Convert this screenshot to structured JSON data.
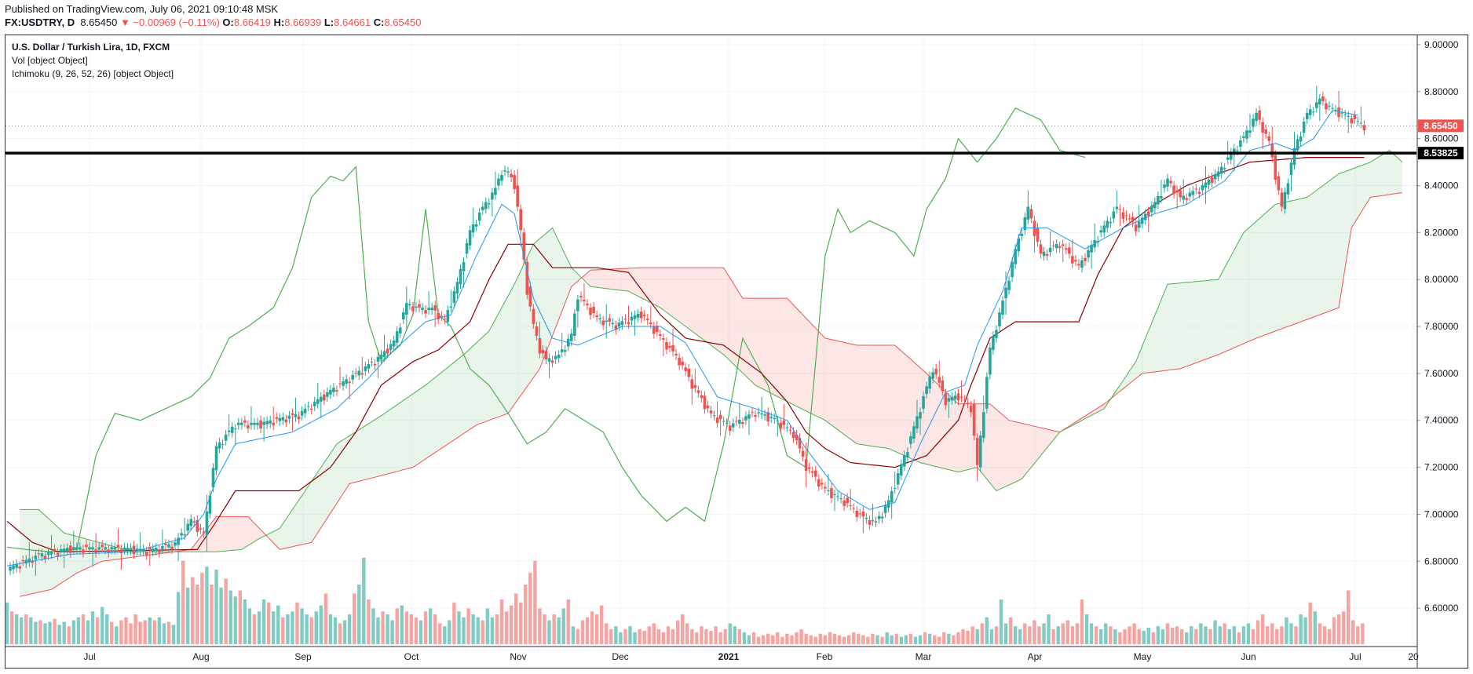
{
  "header": {
    "published": "Published on TradingView.com, July 06, 2021 09:10:48 MSK",
    "symbol": "FX:USDTRY, D",
    "last": "8.65450",
    "change_arrow": "▼",
    "change": "−0.00969 (−0.11%)",
    "o_label": "O:",
    "o_value": "8.66419",
    "h_label": "H:",
    "h_value": "8.66939",
    "l_label": "L:",
    "l_value": "8.64661",
    "c_label": "C:",
    "c_value": "8.65450"
  },
  "legend": {
    "title": "U.S. Dollar / Turkish Lira, 1D, FXCM",
    "volume": "Vol [object Object]",
    "ichimoku": "Ichimoku (9, 26, 52, 26) [object Object]"
  },
  "chart_data": {
    "type": "candlestick",
    "title": "U.S. Dollar / Turkish Lira, 1D, FXCM",
    "ylim": [
      6.44,
      9.04
    ],
    "y_ticks": [
      "9.00000",
      "8.80000",
      "8.60000",
      "8.40000",
      "8.20000",
      "8.00000",
      "7.80000",
      "7.60000",
      "7.40000",
      "7.20000",
      "7.00000",
      "6.80000",
      "6.60000"
    ],
    "x_ticks": [
      "Jul",
      "Aug",
      "Sep",
      "Oct",
      "Nov",
      "Dec",
      "2021",
      "Feb",
      "Mar",
      "Apr",
      "May",
      "Jun",
      "Jul",
      "20"
    ],
    "price_badge": "8.65450",
    "level_badge": "8.53825",
    "level": 8.53825,
    "colors": {
      "up": "#26a69a",
      "down": "#ef5350",
      "up_vol": "#80cbc4",
      "down_vol": "#f6a4a2",
      "tenkan": "#2196f3",
      "kijun": "#8b0000",
      "chikou": "#4caf50",
      "span_a": "#4caf50",
      "span_b": "#ef5350",
      "level": "#000000"
    },
    "price_path": [
      [
        0,
        6.76
      ],
      [
        10,
        6.82
      ],
      [
        20,
        6.85
      ],
      [
        35,
        6.85
      ],
      [
        45,
        6.84
      ],
      [
        53,
        6.87
      ],
      [
        58,
        6.97
      ],
      [
        62,
        6.91
      ],
      [
        66,
        7.28
      ],
      [
        72,
        7.38
      ],
      [
        80,
        7.38
      ],
      [
        92,
        7.42
      ],
      [
        102,
        7.52
      ],
      [
        112,
        7.61
      ],
      [
        118,
        7.67
      ],
      [
        122,
        7.73
      ],
      [
        126,
        7.89
      ],
      [
        130,
        7.87
      ],
      [
        134,
        7.87
      ],
      [
        138,
        7.82
      ],
      [
        142,
        7.98
      ],
      [
        146,
        8.2
      ],
      [
        150,
        8.3
      ],
      [
        154,
        8.38
      ],
      [
        156,
        8.46
      ],
      [
        158,
        8.45
      ],
      [
        160,
        8.4
      ],
      [
        162,
        8.2
      ],
      [
        164,
        7.95
      ],
      [
        166,
        7.8
      ],
      [
        168,
        7.7
      ],
      [
        170,
        7.65
      ],
      [
        174,
        7.67
      ],
      [
        178,
        7.76
      ],
      [
        180,
        7.93
      ],
      [
        186,
        7.83
      ],
      [
        192,
        7.8
      ],
      [
        200,
        7.85
      ],
      [
        206,
        7.75
      ],
      [
        212,
        7.65
      ],
      [
        216,
        7.55
      ],
      [
        222,
        7.42
      ],
      [
        228,
        7.37
      ],
      [
        236,
        7.43
      ],
      [
        242,
        7.4
      ],
      [
        248,
        7.34
      ],
      [
        252,
        7.2
      ],
      [
        258,
        7.1
      ],
      [
        264,
        7.05
      ],
      [
        270,
        6.98
      ],
      [
        274,
        6.96
      ],
      [
        278,
        7.05
      ],
      [
        284,
        7.28
      ],
      [
        288,
        7.45
      ],
      [
        292,
        7.62
      ],
      [
        296,
        7.48
      ],
      [
        300,
        7.5
      ],
      [
        304,
        7.45
      ],
      [
        306,
        7.2
      ],
      [
        310,
        7.7
      ],
      [
        314,
        7.9
      ],
      [
        318,
        8.12
      ],
      [
        322,
        8.3
      ],
      [
        326,
        8.1
      ],
      [
        332,
        8.15
      ],
      [
        338,
        8.05
      ],
      [
        344,
        8.18
      ],
      [
        350,
        8.3
      ],
      [
        356,
        8.22
      ],
      [
        362,
        8.32
      ],
      [
        366,
        8.42
      ],
      [
        370,
        8.34
      ],
      [
        376,
        8.38
      ],
      [
        382,
        8.45
      ],
      [
        386,
        8.53
      ],
      [
        390,
        8.6
      ],
      [
        394,
        8.7
      ],
      [
        398,
        8.58
      ],
      [
        402,
        8.3
      ],
      [
        406,
        8.55
      ],
      [
        410,
        8.7
      ],
      [
        414,
        8.76
      ],
      [
        418,
        8.72
      ],
      [
        424,
        8.68
      ],
      [
        428,
        8.65
      ]
    ],
    "tenkan_path": [
      [
        0,
        6.78
      ],
      [
        20,
        6.83
      ],
      [
        40,
        6.84
      ],
      [
        56,
        6.9
      ],
      [
        62,
        7.0
      ],
      [
        66,
        7.15
      ],
      [
        72,
        7.3
      ],
      [
        90,
        7.35
      ],
      [
        104,
        7.45
      ],
      [
        114,
        7.58
      ],
      [
        122,
        7.7
      ],
      [
        132,
        7.82
      ],
      [
        140,
        7.85
      ],
      [
        148,
        8.1
      ],
      [
        156,
        8.32
      ],
      [
        160,
        8.28
      ],
      [
        166,
        7.92
      ],
      [
        172,
        7.75
      ],
      [
        180,
        7.72
      ],
      [
        194,
        7.8
      ],
      [
        206,
        7.8
      ],
      [
        214,
        7.73
      ],
      [
        224,
        7.5
      ],
      [
        236,
        7.45
      ],
      [
        246,
        7.4
      ],
      [
        252,
        7.28
      ],
      [
        262,
        7.1
      ],
      [
        272,
        7.02
      ],
      [
        280,
        7.05
      ],
      [
        288,
        7.3
      ],
      [
        296,
        7.52
      ],
      [
        302,
        7.55
      ],
      [
        306,
        7.72
      ],
      [
        314,
        7.95
      ],
      [
        320,
        8.22
      ],
      [
        328,
        8.22
      ],
      [
        340,
        8.13
      ],
      [
        352,
        8.22
      ],
      [
        362,
        8.28
      ],
      [
        372,
        8.32
      ],
      [
        384,
        8.42
      ],
      [
        392,
        8.55
      ],
      [
        400,
        8.58
      ],
      [
        406,
        8.55
      ],
      [
        412,
        8.6
      ],
      [
        418,
        8.72
      ],
      [
        426,
        8.7
      ]
    ],
    "kijun_path": [
      [
        0,
        6.97
      ],
      [
        8,
        6.88
      ],
      [
        16,
        6.84
      ],
      [
        60,
        6.85
      ],
      [
        66,
        6.97
      ],
      [
        72,
        7.1
      ],
      [
        92,
        7.1
      ],
      [
        102,
        7.2
      ],
      [
        110,
        7.35
      ],
      [
        118,
        7.55
      ],
      [
        128,
        7.65
      ],
      [
        136,
        7.7
      ],
      [
        146,
        7.82
      ],
      [
        152,
        8.0
      ],
      [
        158,
        8.15
      ],
      [
        166,
        8.15
      ],
      [
        172,
        8.05
      ],
      [
        186,
        8.05
      ],
      [
        196,
        8.03
      ],
      [
        206,
        7.85
      ],
      [
        214,
        7.75
      ],
      [
        226,
        7.72
      ],
      [
        238,
        7.6
      ],
      [
        246,
        7.48
      ],
      [
        252,
        7.35
      ],
      [
        258,
        7.28
      ],
      [
        266,
        7.22
      ],
      [
        280,
        7.2
      ],
      [
        290,
        7.25
      ],
      [
        300,
        7.4
      ],
      [
        304,
        7.55
      ],
      [
        310,
        7.75
      ],
      [
        318,
        7.82
      ],
      [
        338,
        7.82
      ],
      [
        344,
        8.02
      ],
      [
        352,
        8.22
      ],
      [
        362,
        8.32
      ],
      [
        372,
        8.4
      ],
      [
        382,
        8.45
      ],
      [
        392,
        8.5
      ],
      [
        410,
        8.52
      ],
      [
        428,
        8.52
      ]
    ],
    "chikou_path": [
      [
        0,
        6.86
      ],
      [
        6,
        6.85
      ],
      [
        14,
        6.84
      ],
      [
        22,
        6.85
      ],
      [
        28,
        7.25
      ],
      [
        34,
        7.43
      ],
      [
        42,
        7.4
      ],
      [
        50,
        7.45
      ],
      [
        58,
        7.5
      ],
      [
        64,
        7.58
      ],
      [
        70,
        7.75
      ],
      [
        76,
        7.8
      ],
      [
        84,
        7.88
      ],
      [
        90,
        8.05
      ],
      [
        96,
        8.35
      ],
      [
        102,
        8.44
      ],
      [
        106,
        8.42
      ],
      [
        110,
        8.48
      ],
      [
        114,
        7.82
      ],
      [
        118,
        7.65
      ],
      [
        124,
        7.72
      ],
      [
        128,
        7.85
      ],
      [
        132,
        8.3
      ],
      [
        136,
        7.85
      ],
      [
        140,
        7.8
      ],
      [
        146,
        7.62
      ],
      [
        152,
        7.55
      ],
      [
        158,
        7.43
      ],
      [
        164,
        7.3
      ],
      [
        170,
        7.35
      ],
      [
        176,
        7.45
      ],
      [
        182,
        7.4
      ],
      [
        188,
        7.35
      ],
      [
        194,
        7.2
      ],
      [
        200,
        7.08
      ],
      [
        208,
        6.97
      ],
      [
        214,
        7.03
      ],
      [
        220,
        6.97
      ],
      [
        226,
        7.3
      ],
      [
        232,
        7.75
      ],
      [
        240,
        7.55
      ],
      [
        246,
        7.25
      ],
      [
        252,
        7.2
      ],
      [
        258,
        8.1
      ],
      [
        262,
        8.3
      ],
      [
        266,
        8.2
      ],
      [
        272,
        8.25
      ],
      [
        280,
        8.2
      ],
      [
        286,
        8.1
      ],
      [
        290,
        8.3
      ],
      [
        296,
        8.43
      ],
      [
        300,
        8.6
      ],
      [
        306,
        8.5
      ],
      [
        312,
        8.6
      ],
      [
        318,
        8.73
      ],
      [
        326,
        8.68
      ],
      [
        332,
        8.55
      ],
      [
        340,
        8.52
      ]
    ],
    "span_a_path": [
      [
        4,
        7.02
      ],
      [
        10,
        7.02
      ],
      [
        18,
        6.92
      ],
      [
        40,
        6.84
      ],
      [
        66,
        6.84
      ],
      [
        74,
        6.85
      ],
      [
        80,
        6.9
      ],
      [
        86,
        6.94
      ],
      [
        94,
        7.1
      ],
      [
        104,
        7.3
      ],
      [
        118,
        7.42
      ],
      [
        132,
        7.55
      ],
      [
        144,
        7.68
      ],
      [
        152,
        7.78
      ],
      [
        160,
        7.98
      ],
      [
        166,
        8.15
      ],
      [
        172,
        8.22
      ],
      [
        178,
        8.05
      ],
      [
        184,
        7.97
      ],
      [
        196,
        7.95
      ],
      [
        206,
        7.88
      ],
      [
        216,
        7.78
      ],
      [
        226,
        7.68
      ],
      [
        236,
        7.55
      ],
      [
        246,
        7.48
      ],
      [
        258,
        7.4
      ],
      [
        268,
        7.3
      ],
      [
        278,
        7.28
      ],
      [
        288,
        7.22
      ],
      [
        300,
        7.18
      ],
      [
        306,
        7.2
      ],
      [
        312,
        7.1
      ],
      [
        320,
        7.15
      ],
      [
        332,
        7.35
      ],
      [
        346,
        7.45
      ],
      [
        356,
        7.65
      ],
      [
        366,
        7.98
      ],
      [
        382,
        8.0
      ],
      [
        390,
        8.2
      ],
      [
        400,
        8.32
      ],
      [
        410,
        8.35
      ],
      [
        420,
        8.45
      ],
      [
        430,
        8.5
      ],
      [
        436,
        8.55
      ],
      [
        440,
        8.5
      ]
    ],
    "span_b_path": [
      [
        4,
        6.65
      ],
      [
        14,
        6.68
      ],
      [
        22,
        6.75
      ],
      [
        30,
        6.8
      ],
      [
        58,
        6.85
      ],
      [
        66,
        6.99
      ],
      [
        76,
        6.99
      ],
      [
        86,
        6.85
      ],
      [
        96,
        6.88
      ],
      [
        108,
        7.13
      ],
      [
        128,
        7.2
      ],
      [
        148,
        7.38
      ],
      [
        158,
        7.43
      ],
      [
        168,
        7.62
      ],
      [
        178,
        7.97
      ],
      [
        184,
        8.04
      ],
      [
        200,
        8.05
      ],
      [
        212,
        8.05
      ],
      [
        226,
        8.05
      ],
      [
        232,
        7.92
      ],
      [
        246,
        7.92
      ],
      [
        258,
        7.75
      ],
      [
        268,
        7.72
      ],
      [
        280,
        7.72
      ],
      [
        290,
        7.6
      ],
      [
        300,
        7.47
      ],
      [
        310,
        7.47
      ],
      [
        316,
        7.4
      ],
      [
        332,
        7.35
      ],
      [
        346,
        7.47
      ],
      [
        358,
        7.6
      ],
      [
        370,
        7.62
      ],
      [
        382,
        7.68
      ],
      [
        394,
        7.75
      ],
      [
        404,
        7.8
      ],
      [
        414,
        7.85
      ],
      [
        420,
        7.88
      ],
      [
        424,
        8.22
      ],
      [
        430,
        8.35
      ],
      [
        440,
        8.37
      ]
    ],
    "volume": [
      0.28,
      0.22,
      0.2,
      0.18,
      0.2,
      0.18,
      0.15,
      0.16,
      0.14,
      0.15,
      0.17,
      0.13,
      0.15,
      0.12,
      0.16,
      0.18,
      0.2,
      0.16,
      0.22,
      0.18,
      0.25,
      0.2,
      0.15,
      0.12,
      0.16,
      0.18,
      0.14,
      0.2,
      0.15,
      0.16,
      0.18,
      0.16,
      0.18,
      0.14,
      0.15,
      0.13,
      0.35,
      0.56,
      0.38,
      0.45,
      0.4,
      0.48,
      0.52,
      0.4,
      0.5,
      0.38,
      0.44,
      0.36,
      0.32,
      0.36,
      0.3,
      0.24,
      0.2,
      0.22,
      0.3,
      0.28,
      0.22,
      0.26,
      0.18,
      0.2,
      0.22,
      0.28,
      0.24,
      0.2,
      0.18,
      0.22,
      0.26,
      0.34,
      0.2,
      0.18,
      0.14,
      0.16,
      0.2,
      0.34,
      0.4,
      0.58,
      0.3,
      0.24,
      0.18,
      0.22,
      0.2,
      0.16,
      0.24,
      0.26,
      0.22,
      0.2,
      0.18,
      0.16,
      0.22,
      0.24,
      0.2,
      0.14,
      0.12,
      0.16,
      0.28,
      0.22,
      0.18,
      0.24,
      0.2,
      0.18,
      0.16,
      0.24,
      0.18,
      0.2,
      0.3,
      0.22,
      0.26,
      0.34,
      0.28,
      0.4,
      0.48,
      0.56,
      0.24,
      0.2,
      0.16,
      0.2,
      0.18,
      0.24,
      0.3,
      0.12,
      0.1,
      0.16,
      0.18,
      0.22,
      0.2,
      0.26,
      0.14,
      0.1,
      0.12,
      0.08,
      0.1,
      0.12,
      0.08,
      0.1,
      0.09,
      0.12,
      0.14,
      0.1,
      0.08,
      0.12,
      0.1,
      0.16,
      0.2,
      0.14,
      0.1,
      0.08,
      0.12,
      0.1,
      0.09,
      0.12,
      0.08,
      0.1,
      0.14,
      0.12,
      0.1,
      0.08,
      0.06,
      0.08,
      0.05,
      0.06,
      0.07,
      0.06,
      0.08,
      0.05,
      0.07,
      0.06,
      0.08,
      0.1,
      0.07,
      0.06,
      0.05,
      0.07,
      0.06,
      0.08,
      0.07,
      0.06,
      0.05,
      0.06,
      0.08,
      0.07,
      0.06,
      0.05,
      0.07,
      0.06,
      0.05,
      0.08,
      0.06,
      0.07,
      0.05,
      0.06,
      0.07,
      0.05,
      0.06,
      0.08,
      0.07,
      0.06,
      0.05,
      0.08,
      0.07,
      0.06,
      0.08,
      0.1,
      0.09,
      0.12,
      0.1,
      0.14,
      0.18,
      0.1,
      0.12,
      0.3,
      0.14,
      0.18,
      0.12,
      0.1,
      0.14,
      0.12,
      0.16,
      0.12,
      0.14,
      0.2,
      0.1,
      0.12,
      0.14,
      0.16,
      0.12,
      0.14,
      0.3,
      0.2,
      0.14,
      0.12,
      0.1,
      0.14,
      0.12,
      0.1,
      0.08,
      0.1,
      0.12,
      0.14,
      0.1,
      0.09,
      0.11,
      0.08,
      0.12,
      0.1,
      0.14,
      0.11,
      0.12,
      0.1,
      0.08,
      0.12,
      0.1,
      0.14,
      0.12,
      0.1,
      0.16,
      0.12,
      0.14,
      0.1,
      0.12,
      0.08,
      0.12,
      0.14,
      0.1,
      0.16,
      0.2,
      0.12,
      0.14,
      0.1,
      0.12,
      0.18,
      0.14,
      0.12,
      0.2,
      0.18,
      0.28,
      0.22,
      0.14,
      0.12,
      0.1,
      0.18,
      0.2,
      0.22,
      0.36,
      0.16,
      0.12,
      0.14,
      0.58,
      0.2,
      0.16,
      0.48,
      0.26,
      0.18,
      0.14,
      0.1,
      0.08,
      0.06
    ]
  }
}
